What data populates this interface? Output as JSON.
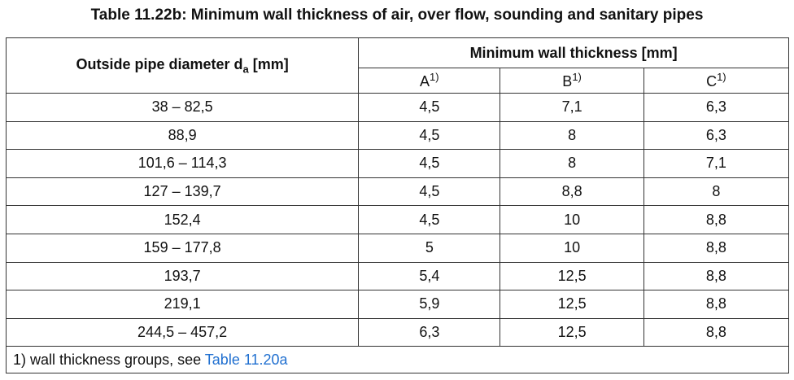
{
  "caption": "Table 11.22b: Minimum wall thickness of air, over flow, sounding and sanitary pipes",
  "header": {
    "col0_prefix": "Outside pipe diameter d",
    "col0_sub": "a",
    "col0_suffix": " [mm]",
    "group_label": "Minimum wall thickness [mm]",
    "sub_cols": [
      {
        "label": "A",
        "note": "1)"
      },
      {
        "label": "B",
        "note": "1)"
      },
      {
        "label": "C",
        "note": "1)"
      }
    ]
  },
  "rows": [
    [
      "38 – 82,5",
      "4,5",
      "7,1",
      "6,3"
    ],
    [
      "88,9",
      "4,5",
      "8",
      "6,3"
    ],
    [
      "101,6 – 114,3",
      "4,5",
      "8",
      "7,1"
    ],
    [
      "127 – 139,7",
      "4,5",
      "8,8",
      "8"
    ],
    [
      "152,4",
      "4,5",
      "10",
      "8,8"
    ],
    [
      "159 – 177,8",
      "5",
      "10",
      "8,8"
    ],
    [
      "193,7",
      "5,4",
      "12,5",
      "8,8"
    ],
    [
      "219,1",
      "5,9",
      "12,5",
      "8,8"
    ],
    [
      "244,5 – 457,2",
      "6,3",
      "12,5",
      "8,8"
    ]
  ],
  "footnote": {
    "text": "1) wall thickness groups, see ",
    "link_text": "Table 11.20a",
    "link_color": "#1f6fd0"
  }
}
